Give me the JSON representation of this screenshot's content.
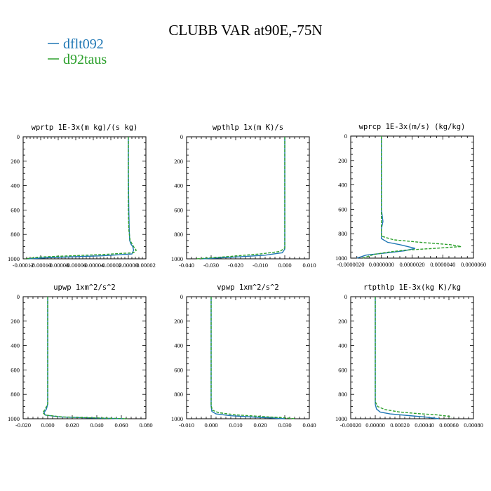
{
  "title": "CLUBB VAR at90E,-75N",
  "colors": {
    "dflt092": "#1f77b4",
    "d92taus": "#2ca02c"
  },
  "legend": [
    {
      "name": "dflt092",
      "color": "#1f77b4"
    },
    {
      "name": "d92taus",
      "color": "#2ca02c"
    }
  ],
  "chart_data": [
    {
      "type": "line",
      "title": "wprtp  1E-3x(m kg)/(s kg)",
      "xlim": [
        -0.00012,
        2e-05
      ],
      "ylim": [
        1000,
        0
      ],
      "xticks": [
        -0.00012,
        -0.0001,
        -8e-05,
        -6e-05,
        -4e-05,
        -2e-05,
        0.0,
        2e-05
      ],
      "xtick_labels": [
        "-0.00012",
        "-0.00010",
        "-0.00008",
        "-0.00006",
        "-0.00004",
        "-0.00002",
        "0.00000",
        "0.00002"
      ],
      "yticks": [
        0,
        200,
        400,
        600,
        800,
        1000
      ],
      "ytick_labels": [
        "0",
        "200",
        "400",
        "600",
        "800",
        "1000"
      ],
      "series": [
        {
          "name": "dflt092",
          "style": "solid",
          "x": [
            0.0,
            0.0,
            5e-07,
            1e-06,
            1.5e-06,
            3e-06,
            5e-06,
            6e-06,
            4e-06,
            -3e-05,
            -9e-05,
            -0.000115
          ],
          "y": [
            0,
            300,
            600,
            760,
            850,
            880,
            900,
            930,
            960,
            975,
            990,
            1000
          ]
        },
        {
          "name": "d92taus",
          "style": "dashed",
          "x": [
            0.0,
            0.0,
            0.0,
            5e-07,
            2e-06,
            6e-06,
            9e-06,
            6e-06,
            -3e-05,
            -0.0001,
            -0.000118
          ],
          "y": [
            0,
            300,
            600,
            760,
            850,
            900,
            930,
            950,
            965,
            985,
            1000
          ]
        }
      ]
    },
    {
      "type": "line",
      "title": "wpthlp  1x(m K)/s",
      "xlim": [
        -0.04,
        0.01
      ],
      "ylim": [
        1000,
        0
      ],
      "xticks": [
        -0.04,
        -0.03,
        -0.02,
        -0.01,
        0.0,
        0.01
      ],
      "xtick_labels": [
        "-0.040",
        "-0.030",
        "-0.020",
        "-0.010",
        "0.000",
        "0.010"
      ],
      "yticks": [
        0,
        200,
        400,
        600,
        800,
        1000
      ],
      "ytick_labels": [
        "0",
        "200",
        "400",
        "600",
        "800",
        "1000"
      ],
      "series": [
        {
          "name": "dflt092",
          "style": "solid",
          "x": [
            0.0,
            0.0,
            0.0,
            0.0,
            -0.001,
            -0.008,
            -0.02,
            -0.034
          ],
          "y": [
            0,
            400,
            800,
            920,
            950,
            970,
            985,
            1000
          ]
        },
        {
          "name": "d92taus",
          "style": "dashed",
          "x": [
            0.0,
            0.0,
            0.0,
            0.0,
            -0.002,
            -0.01,
            -0.022,
            -0.036
          ],
          "y": [
            0,
            400,
            800,
            910,
            940,
            960,
            980,
            1000
          ]
        }
      ]
    },
    {
      "type": "line",
      "title": "wprcp  1E-3x(m/s) (kg/kg)",
      "xlim": [
        -2e-06,
        6e-06
      ],
      "ylim": [
        1000,
        0
      ],
      "xticks": [
        -2e-06,
        0.0,
        2e-06,
        4e-06,
        6e-06
      ],
      "xtick_labels": [
        "-0.0000020",
        "0.0000000",
        "0.0000020",
        "0.0000040",
        "0.0000060"
      ],
      "yticks": [
        0,
        200,
        400,
        600,
        800,
        1000
      ],
      "ytick_labels": [
        "0",
        "200",
        "400",
        "600",
        "800",
        "1000"
      ],
      "series": [
        {
          "name": "dflt092",
          "style": "solid",
          "x": [
            0.0,
            0.0,
            0.0,
            5e-08,
            1e-07,
            0.0,
            0.0,
            4e-07,
            1.2e-06,
            2.2e-06,
            1.5e-06,
            5e-07,
            -1e-06,
            -1.6e-06
          ],
          "y": [
            0,
            400,
            600,
            650,
            700,
            760,
            840,
            870,
            890,
            920,
            940,
            955,
            975,
            1000
          ]
        },
        {
          "name": "d92taus",
          "style": "dashed",
          "x": [
            0.0,
            0.0,
            0.0,
            0.0,
            0.0,
            8e-07,
            2.5e-06,
            4.5e-06,
            5.2e-06,
            3.5e-06,
            1.5e-06,
            5e-07,
            -5e-07,
            -1.2e-06
          ],
          "y": [
            0,
            400,
            600,
            700,
            820,
            850,
            870,
            890,
            905,
            920,
            935,
            950,
            970,
            1000
          ]
        }
      ]
    },
    {
      "type": "line",
      "title": "upwp  1xm^2/s^2",
      "xlim": [
        -0.02,
        0.08
      ],
      "ylim": [
        1000,
        0
      ],
      "xticks": [
        -0.02,
        0.0,
        0.02,
        0.04,
        0.06,
        0.08
      ],
      "xtick_labels": [
        "-0.020",
        "0.000",
        "0.020",
        "0.040",
        "0.060",
        "0.080"
      ],
      "yticks": [
        0,
        200,
        400,
        600,
        800,
        1000
      ],
      "ytick_labels": [
        "0",
        "200",
        "400",
        "600",
        "800",
        "1000"
      ],
      "series": [
        {
          "name": "dflt092",
          "style": "solid",
          "x": [
            0.0,
            0.0,
            0.0,
            -0.001,
            -0.003,
            -0.002,
            0.01,
            0.03,
            0.05,
            0.062
          ],
          "y": [
            0,
            400,
            880,
            920,
            950,
            970,
            985,
            992,
            997,
            1000
          ]
        },
        {
          "name": "d92taus",
          "style": "dashed",
          "x": [
            0.0,
            0.0,
            0.0,
            -0.002,
            -0.004,
            -0.002,
            0.012,
            0.035,
            0.055,
            0.065
          ],
          "y": [
            0,
            400,
            880,
            920,
            950,
            970,
            985,
            992,
            997,
            1000
          ]
        }
      ]
    },
    {
      "type": "line",
      "title": "vpwp  1xm^2/s^2",
      "xlim": [
        -0.01,
        0.04
      ],
      "ylim": [
        1000,
        0
      ],
      "xticks": [
        -0.01,
        0.0,
        0.01,
        0.02,
        0.03,
        0.04
      ],
      "xtick_labels": [
        "-0.010",
        "0.000",
        "0.010",
        "0.020",
        "0.030",
        "0.040"
      ],
      "yticks": [
        0,
        200,
        400,
        600,
        800,
        1000
      ],
      "ytick_labels": [
        "0",
        "200",
        "400",
        "600",
        "800",
        "1000"
      ],
      "series": [
        {
          "name": "dflt092",
          "style": "solid",
          "x": [
            0.0,
            0.0,
            0.0,
            0.0003,
            0.002,
            0.008,
            0.018,
            0.026,
            0.03
          ],
          "y": [
            0,
            400,
            900,
            940,
            960,
            975,
            987,
            995,
            1000
          ]
        },
        {
          "name": "d92taus",
          "style": "dashed",
          "x": [
            0.0,
            0.0,
            0.0,
            0.0005,
            0.003,
            0.01,
            0.022,
            0.031,
            0.034
          ],
          "y": [
            0,
            400,
            890,
            930,
            950,
            968,
            983,
            994,
            1000
          ]
        }
      ]
    },
    {
      "type": "line",
      "title": "rtpthlp  1E-3x(kg K)/kg",
      "xlim": [
        -0.0002,
        0.0008
      ],
      "ylim": [
        1000,
        0
      ],
      "xticks": [
        -0.0002,
        0.0,
        0.0002,
        0.0004,
        0.0006,
        0.0008
      ],
      "xtick_labels": [
        "-0.00020",
        "0.00000",
        "0.00020",
        "0.00040",
        "0.00060",
        "0.00080"
      ],
      "yticks": [
        0,
        200,
        400,
        600,
        800,
        1000
      ],
      "ytick_labels": [
        "0",
        "200",
        "400",
        "600",
        "800",
        "1000"
      ],
      "series": [
        {
          "name": "dflt092",
          "style": "solid",
          "x": [
            0.0,
            0.0,
            0.0,
            1e-05,
            4e-05,
            0.00012,
            0.00025,
            0.0004,
            0.00052
          ],
          "y": [
            0,
            400,
            880,
            920,
            945,
            960,
            972,
            985,
            1000
          ]
        },
        {
          "name": "d92taus",
          "style": "dashed",
          "x": [
            0.0,
            0.0,
            0.0,
            2e-05,
            8e-05,
            0.0002,
            0.00035,
            0.0005,
            0.0006,
            0.00062
          ],
          "y": [
            0,
            400,
            860,
            900,
            925,
            945,
            958,
            968,
            980,
            990
          ]
        }
      ]
    }
  ]
}
